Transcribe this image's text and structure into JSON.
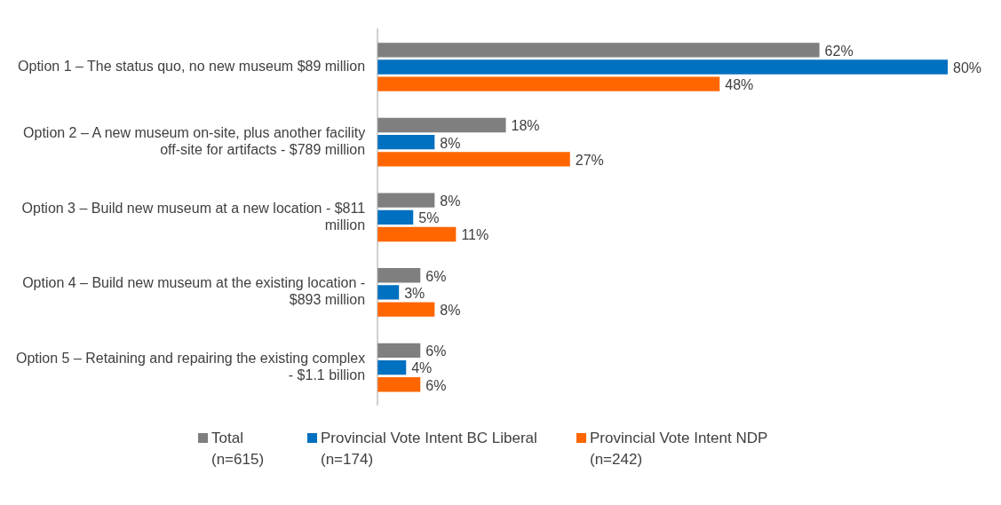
{
  "chart_data": {
    "type": "bar",
    "orientation": "horizontal",
    "categories": [
      "Option 1 – The status quo, no new museum $89 million",
      "Option 2 – A new museum on-site, plus another facility off-site for artifacts - $789 million",
      "Option 3 – Build new museum at a new location - $811 million",
      "Option 4 – Build new museum at the existing location - $893 million",
      "Option 5 – Retaining and repairing the existing complex - $1.1 billion"
    ],
    "series": [
      {
        "name": "Total (n=615)",
        "color": "#7f7f7f",
        "values": [
          62,
          18,
          8,
          6,
          6
        ],
        "value_labels": [
          "62%",
          "18%",
          "8%",
          "6%",
          "6%"
        ]
      },
      {
        "name": "Provincial Vote Intent BC Liberal (n=174)",
        "color": "#0070c0",
        "values": [
          80,
          8,
          5,
          3,
          4
        ],
        "value_labels": [
          "80%",
          "8%",
          "5%",
          "3%",
          "4%"
        ]
      },
      {
        "name": "Provincial Vote Intent NDP (n=242)",
        "color": "#ff6600",
        "values": [
          48,
          27,
          11,
          8,
          6
        ],
        "value_labels": [
          "48%",
          "27%",
          "11%",
          "8%",
          "6%"
        ]
      }
    ],
    "legend": "bottom"
  }
}
